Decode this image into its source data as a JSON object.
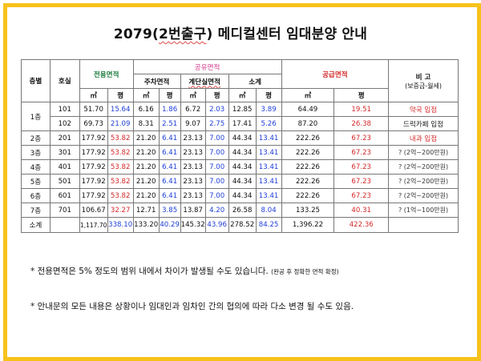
{
  "title": {
    "prefix": "2079(",
    "highlight": "2번출구",
    "suffix": ") 메디컬센터 임대분양 안내"
  },
  "headers": {
    "floor": "층별",
    "unit": "호실",
    "exclusive_area": "전용면적",
    "common_area": "공유면적",
    "parking_area": "주차면적",
    "stair_area": "계단실면적",
    "subtotal": "소계",
    "supply_area": "공급면적",
    "remarks_title": "비 고",
    "remarks_sub": "(보증금-월세)",
    "sqm": "㎡",
    "pyeong": "평"
  },
  "rows": [
    {
      "floor": "1층",
      "unit": "101",
      "ex_m": "51.70",
      "ex_p": "15.64",
      "pk_m": "6.16",
      "pk_p": "1.86",
      "st_m": "6.72",
      "st_p": "2.03",
      "sub_m": "12.85",
      "sub_p": "3.89",
      "sup_m": "64.49",
      "sup_p": "19.51",
      "note": "약국 입점",
      "note_style": "red"
    },
    {
      "floor": "",
      "unit": "102",
      "ex_m": "69.73",
      "ex_p": "21.09",
      "pk_m": "8.31",
      "pk_p": "2.51",
      "st_m": "9.07",
      "st_p": "2.75",
      "sub_m": "17.41",
      "sub_p": "5.26",
      "sup_m": "87.20",
      "sup_p": "26.38",
      "note": "드럭카페 입점",
      "note_style": "dark"
    },
    {
      "floor": "2층",
      "unit": "201",
      "ex_m": "177.92",
      "ex_p": "53.82",
      "pk_m": "21.20",
      "pk_p": "6.41",
      "st_m": "23.13",
      "st_p": "7.00",
      "sub_m": "44.34",
      "sub_p": "13.41",
      "sup_m": "222.26",
      "sup_p": "67.23",
      "note": "내과 입점",
      "note_style": "red"
    },
    {
      "floor": "3층",
      "unit": "301",
      "ex_m": "177.92",
      "ex_p": "53.82",
      "pk_m": "21.20",
      "pk_p": "6.41",
      "st_m": "23.13",
      "st_p": "7.00",
      "sub_m": "44.34",
      "sub_p": "13.41",
      "sup_m": "222.26",
      "sup_p": "67.23",
      "note": "? (2억~200만원)",
      "note_style": "gray"
    },
    {
      "floor": "4층",
      "unit": "401",
      "ex_m": "177.92",
      "ex_p": "53.82",
      "pk_m": "21.20",
      "pk_p": "6.41",
      "st_m": "23.13",
      "st_p": "7.00",
      "sub_m": "44.34",
      "sub_p": "13.41",
      "sup_m": "222.26",
      "sup_p": "67.23",
      "note": "? (2억~200만원)",
      "note_style": "gray"
    },
    {
      "floor": "5층",
      "unit": "501",
      "ex_m": "177.92",
      "ex_p": "53.82",
      "pk_m": "21.20",
      "pk_p": "6.41",
      "st_m": "23.13",
      "st_p": "7.00",
      "sub_m": "44.34",
      "sub_p": "13.41",
      "sup_m": "222.26",
      "sup_p": "67.23",
      "note": "? (2억~200만원)",
      "note_style": "gray"
    },
    {
      "floor": "6층",
      "unit": "601",
      "ex_m": "177.92",
      "ex_p": "53.82",
      "pk_m": "21.20",
      "pk_p": "6.41",
      "st_m": "23.13",
      "st_p": "7.00",
      "sub_m": "44.34",
      "sub_p": "13.41",
      "sup_m": "222.26",
      "sup_p": "67.23",
      "note": "? (2억~200만원)",
      "note_style": "gray"
    },
    {
      "floor": "7층",
      "unit": "701",
      "ex_m": "106.67",
      "ex_p": "32.27",
      "pk_m": "12.71",
      "pk_p": "3.85",
      "st_m": "13.87",
      "st_p": "4.20",
      "sub_m": "26.58",
      "sub_p": "8.04",
      "sup_m": "133.25",
      "sup_p": "40.31",
      "note": "? (1억~100만원)",
      "note_style": "gray"
    }
  ],
  "total": {
    "label": "소계",
    "ex_m": "1,117.70",
    "ex_p": "338.10",
    "pk_m": "133.20",
    "pk_p": "40.29",
    "st_m": "145.32",
    "st_p": "43.96",
    "sub_m": "278.52",
    "sub_p": "84.25",
    "sup_m": "1,396.22",
    "sup_p": "422.36",
    "note": ""
  },
  "notes": {
    "note1": "* 전용면적은 5% 정도의 범위 내에서 차이가 발생될 수도 있습니다.",
    "note1_small": "(완공 후 정확한 면적 확정)",
    "note2": "* 안내문의 모든 내용은  상황이나 임대인과 임차인 간의 협의에 따라 다소 변경 될 수도 있음."
  }
}
